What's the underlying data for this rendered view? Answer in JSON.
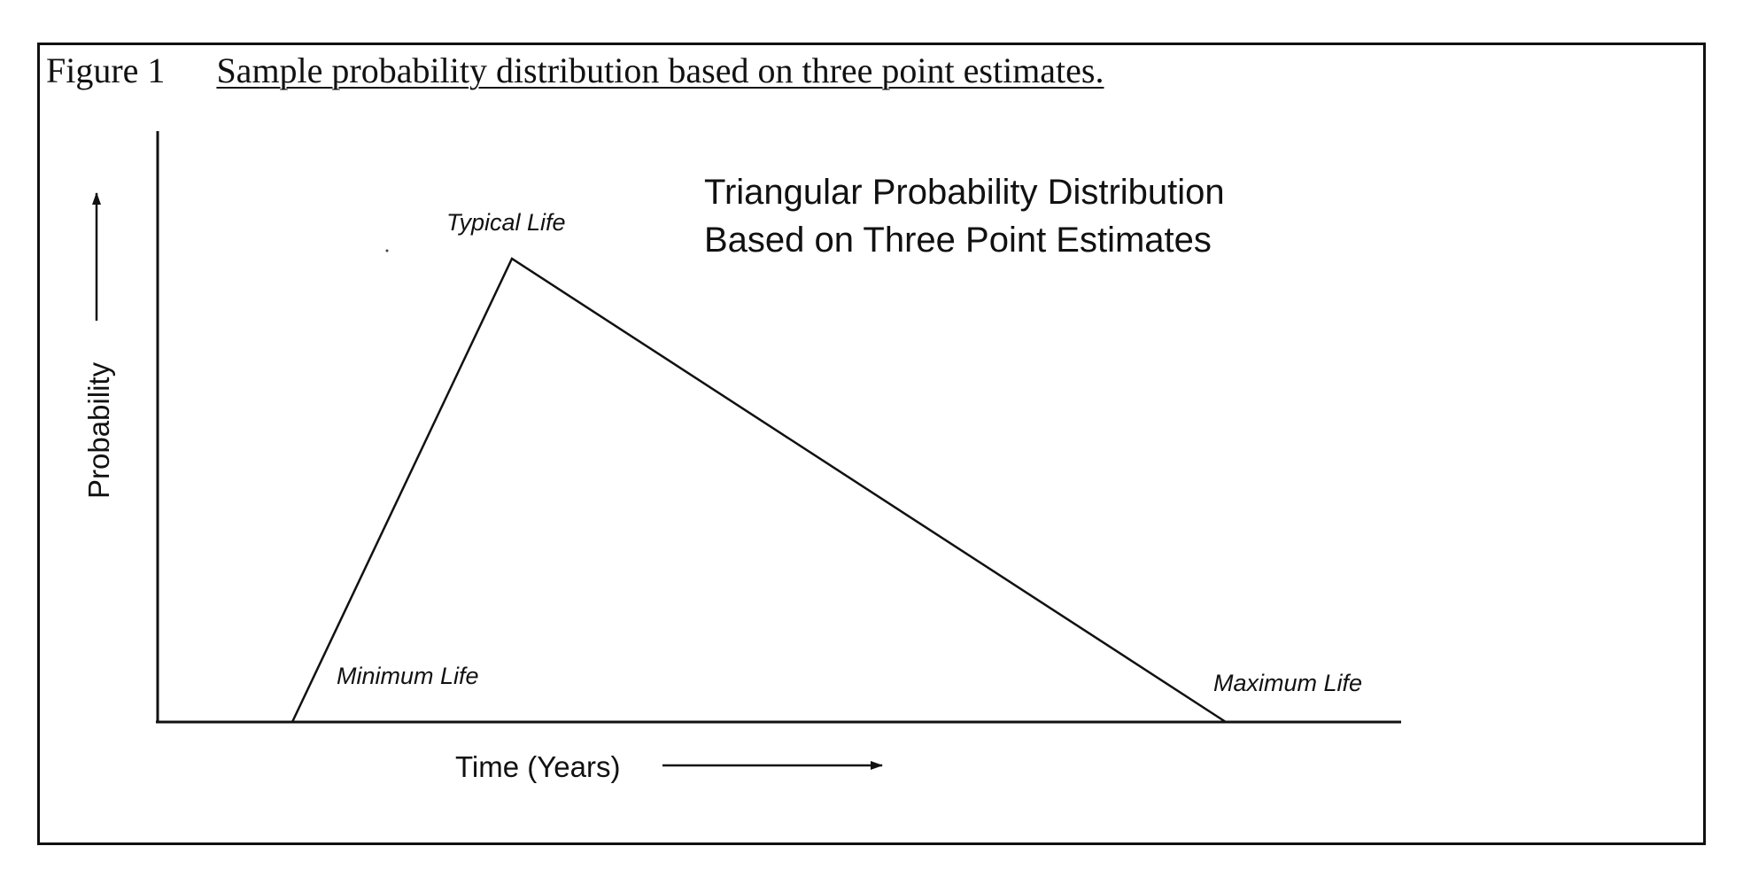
{
  "caption": {
    "number": "Figure 1",
    "text": "Sample probability distribution based on three point estimates."
  },
  "diagram": {
    "title_line_1": "Triangular Probability Distribution",
    "title_line_2": "Based on Three Point Estimates",
    "y_axis_label": "Probability",
    "x_axis_label": "Time (Years)",
    "points": {
      "minimum": "Minimum Life",
      "typical": "Typical Life",
      "maximum": "Maximum Life"
    }
  },
  "colors": {
    "ink": "#111111",
    "paper": "#ffffff"
  }
}
